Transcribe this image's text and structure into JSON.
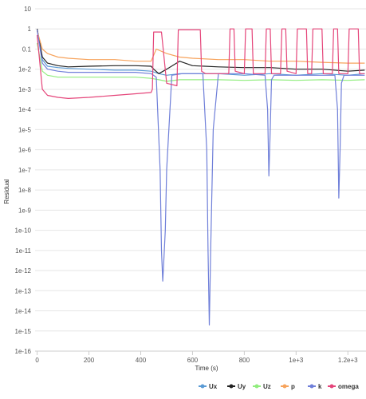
{
  "chart_data": {
    "type": "line",
    "title": "",
    "xlabel": "Time (s)",
    "ylabel": "Residual",
    "y_scale": "log",
    "xlim": [
      -8,
      1270
    ],
    "ylim": [
      1e-16,
      10
    ],
    "x_ticks": [
      0,
      200,
      400,
      600,
      800,
      1000,
      1200
    ],
    "x_tick_labels": [
      "0",
      "200",
      "400",
      "600",
      "800",
      "1e+3",
      "1.2e+3"
    ],
    "y_ticks": [
      10,
      1,
      0.1,
      0.01,
      0.001,
      0.0001,
      1e-05,
      1e-06,
      1e-07,
      1e-08,
      1e-09,
      1e-10,
      1e-11,
      1e-12,
      1e-13,
      1e-14,
      1e-15,
      1e-16
    ],
    "y_tick_labels": [
      "10",
      "1",
      "0.1",
      "1e-2",
      "1e-3",
      "1e-4",
      "1e-5",
      "1e-6",
      "1e-7",
      "1e-8",
      "1e-9",
      "1e-10",
      "1e-11",
      "1e-12",
      "1e-13",
      "1e-14",
      "1e-15",
      "1e-16"
    ],
    "grid": true,
    "legend_position": "bottom-right",
    "series": [
      {
        "name": "Ux",
        "color": "#5b9bd5",
        "x": [
          0,
          20,
          40,
          80,
          120,
          200,
          300,
          380,
          440,
          470,
          500,
          550,
          600,
          700,
          800,
          900,
          1000,
          1100,
          1200,
          1265
        ],
        "y": [
          0.9,
          0.03,
          0.014,
          0.012,
          0.011,
          0.01,
          0.009,
          0.009,
          0.008,
          0.006,
          0.005,
          0.006,
          0.006,
          0.006,
          0.005,
          0.006,
          0.005,
          0.006,
          0.005,
          0.006
        ]
      },
      {
        "name": "Uy",
        "color": "#222222",
        "x": [
          0,
          20,
          40,
          80,
          120,
          200,
          300,
          380,
          440,
          450,
          470,
          500,
          550,
          600,
          700,
          800,
          900,
          1000,
          1100,
          1200,
          1265
        ],
        "y": [
          1,
          0.04,
          0.02,
          0.015,
          0.013,
          0.014,
          0.015,
          0.015,
          0.014,
          0.01,
          0.006,
          0.01,
          0.025,
          0.015,
          0.013,
          0.012,
          0.012,
          0.01,
          0.01,
          0.008,
          0.009
        ]
      },
      {
        "name": "Uz",
        "color": "#90ed7d",
        "x": [
          0,
          20,
          40,
          80,
          120,
          200,
          300,
          380,
          440,
          470,
          500,
          550,
          600,
          700,
          800,
          900,
          1000,
          1100,
          1200,
          1265
        ],
        "y": [
          0.2,
          0.008,
          0.005,
          0.004,
          0.004,
          0.004,
          0.004,
          0.004,
          0.0035,
          0.003,
          0.0025,
          0.003,
          0.003,
          0.003,
          0.0028,
          0.003,
          0.0028,
          0.003,
          0.0028,
          0.003
        ]
      },
      {
        "name": "p",
        "color": "#f7a35c",
        "x": [
          0,
          20,
          40,
          80,
          120,
          200,
          300,
          380,
          440,
          460,
          500,
          550,
          600,
          700,
          800,
          900,
          1000,
          1100,
          1200,
          1265
        ],
        "y": [
          0.8,
          0.1,
          0.06,
          0.04,
          0.035,
          0.03,
          0.03,
          0.025,
          0.025,
          0.1,
          0.06,
          0.04,
          0.035,
          0.03,
          0.03,
          0.025,
          0.025,
          0.022,
          0.02,
          0.02
        ]
      },
      {
        "name": "k",
        "color": "#6f7fd9",
        "x": [
          0,
          20,
          40,
          80,
          120,
          200,
          300,
          380,
          440,
          460,
          475,
          480,
          485,
          490,
          495,
          500,
          520,
          560,
          600,
          640,
          655,
          660,
          665,
          670,
          680,
          700,
          750,
          800,
          880,
          890,
          895,
          900,
          905,
          915,
          1000,
          1100,
          1150,
          1160,
          1165,
          1170,
          1175,
          1185,
          1265
        ],
        "y": [
          0.9,
          0.02,
          0.01,
          0.008,
          0.007,
          0.007,
          0.007,
          0.007,
          0.006,
          0.004,
          1e-07,
          1e-11,
          3e-13,
          5e-12,
          1e-10,
          1e-07,
          0.005,
          0.006,
          0.006,
          0.006,
          1e-06,
          1e-11,
          2e-15,
          1e-11,
          1e-05,
          0.006,
          0.006,
          0.006,
          0.005,
          0.0001,
          5e-08,
          1e-05,
          0.003,
          0.005,
          0.005,
          0.005,
          0.005,
          0.0001,
          4e-09,
          1e-06,
          0.002,
          0.005,
          0.005
        ]
      },
      {
        "name": "omega",
        "color": "#e5457a",
        "x": [
          0,
          20,
          40,
          80,
          120,
          200,
          300,
          380,
          440,
          445,
          450,
          480,
          500,
          540,
          545,
          550,
          600,
          630,
          635,
          650,
          700,
          740,
          745,
          760,
          765,
          800,
          805,
          830,
          835,
          880,
          885,
          900,
          905,
          940,
          945,
          960,
          965,
          1000,
          1005,
          1040,
          1045,
          1060,
          1065,
          1100,
          1105,
          1140,
          1145,
          1160,
          1165,
          1200,
          1205,
          1240,
          1245,
          1265
        ],
        "y": [
          0.5,
          0.001,
          0.0005,
          0.0004,
          0.00035,
          0.0004,
          0.0005,
          0.0006,
          0.0007,
          0.001,
          0.7,
          0.7,
          0.002,
          0.0015,
          0.9,
          0.9,
          0.9,
          0.9,
          0.008,
          0.006,
          0.006,
          0.006,
          1,
          1,
          0.008,
          0.006,
          1,
          1,
          0.006,
          0.006,
          1,
          1,
          0.006,
          0.006,
          1,
          1,
          0.008,
          0.006,
          1,
          1,
          0.006,
          0.006,
          1,
          1,
          0.006,
          0.006,
          1,
          1,
          0.006,
          0.006,
          1,
          1,
          0.006,
          0.006
        ]
      }
    ]
  }
}
